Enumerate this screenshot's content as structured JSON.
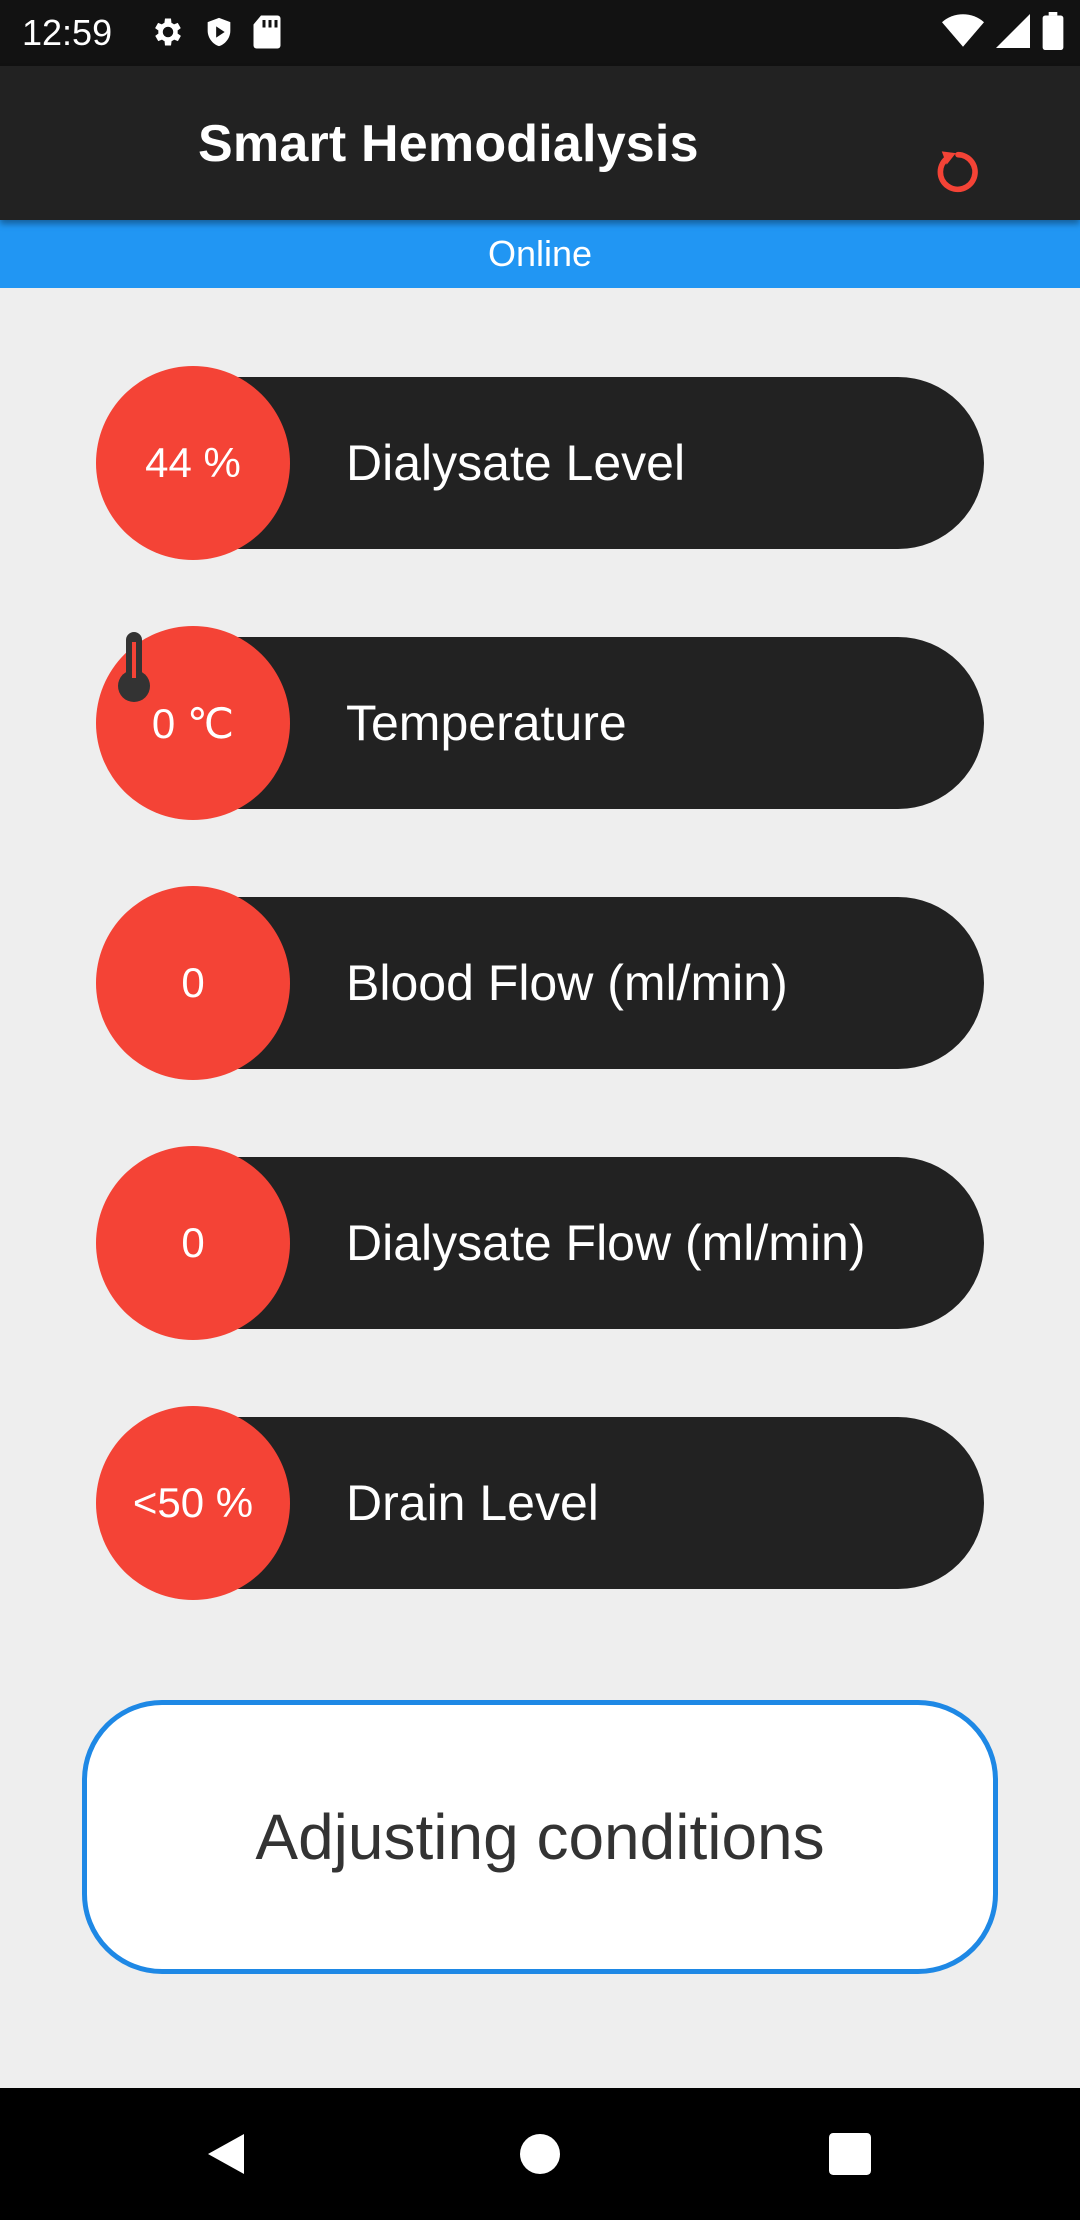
{
  "status_bar": {
    "time": "12:59",
    "left_icons": [
      "gear-icon",
      "shield-icon",
      "sd-card-icon"
    ],
    "right_icons": [
      "wifi-icon",
      "signal-icon",
      "battery-icon"
    ]
  },
  "app_bar": {
    "title": "Smart Hemodialysis",
    "refresh_icon": "refresh-icon",
    "accent_color": "#f44336"
  },
  "connection": {
    "status": "Online",
    "color": "#2196f3"
  },
  "metrics": [
    {
      "value": "44 %",
      "label": "Dialysate Level"
    },
    {
      "value": "0 ℃",
      "label": "Temperature",
      "icon": "thermometer-icon"
    },
    {
      "value": "0",
      "label": "Blood Flow (ml/min)"
    },
    {
      "value": "0",
      "label": "Dialysate Flow (ml/min)"
    },
    {
      "value": "<50 %",
      "label": "Drain Level"
    }
  ],
  "action": {
    "label": "Adjusting conditions",
    "border_color": "#1e88e5"
  },
  "nav": {
    "icons": [
      "back-icon",
      "home-icon",
      "recents-icon"
    ]
  }
}
